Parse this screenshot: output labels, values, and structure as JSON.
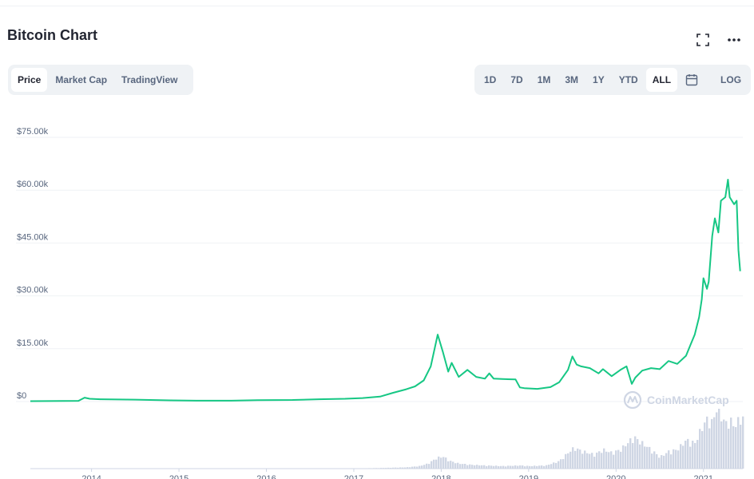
{
  "header": {
    "title": "Bitcoin Chart",
    "fullscreen_icon": "fullscreen-icon",
    "more_icon": "more-horizontal-icon"
  },
  "view_tabs": [
    {
      "label": "Price",
      "active": true
    },
    {
      "label": "Market Cap",
      "active": false
    },
    {
      "label": "TradingView",
      "active": false
    }
  ],
  "range_tabs": [
    {
      "label": "1D",
      "active": false
    },
    {
      "label": "7D",
      "active": false
    },
    {
      "label": "1M",
      "active": false
    },
    {
      "label": "3M",
      "active": false
    },
    {
      "label": "1Y",
      "active": false
    },
    {
      "label": "YTD",
      "active": false
    },
    {
      "label": "ALL",
      "active": true
    }
  ],
  "calendar_icon": "calendar-icon",
  "scale_toggle": {
    "label": "LOG"
  },
  "colors": {
    "line": "#16c784",
    "volume": "#cfd6e4",
    "grid": "#eff2f5",
    "tick_text": "#58667e",
    "button_bg": "#eff2f5",
    "active_bg": "#ffffff"
  },
  "watermark": {
    "text": "CoinMarketCap",
    "icon": "coinmarketcap-logo-icon"
  },
  "chart_data": {
    "type": "line",
    "title": "",
    "xlabel": "",
    "ylabel": "",
    "ylim": [
      0,
      75000
    ],
    "yticks": [
      {
        "value": 0,
        "label": "$0"
      },
      {
        "value": 15000,
        "label": "$15.00k"
      },
      {
        "value": 30000,
        "label": "$30.00k"
      },
      {
        "value": 45000,
        "label": "$45.00k"
      },
      {
        "value": 60000,
        "label": "$60.00k"
      },
      {
        "value": 75000,
        "label": "$75.00k"
      }
    ],
    "xlim": [
      2013.3,
      2021.45
    ],
    "xticks": [
      {
        "value": 2014,
        "label": "2014"
      },
      {
        "value": 2015,
        "label": "2015"
      },
      {
        "value": 2016,
        "label": "2016"
      },
      {
        "value": 2017,
        "label": "2017"
      },
      {
        "value": 2018,
        "label": "2018"
      },
      {
        "value": 2019,
        "label": "2019"
      },
      {
        "value": 2020,
        "label": "2020"
      },
      {
        "value": 2021,
        "label": "2021"
      }
    ],
    "grid": true,
    "legend": "none",
    "series": [
      {
        "kind": "price",
        "points": [
          [
            2013.3,
            120
          ],
          [
            2013.85,
            200
          ],
          [
            2013.92,
            1100
          ],
          [
            2013.98,
            800
          ],
          [
            2014.1,
            650
          ],
          [
            2014.5,
            550
          ],
          [
            2014.9,
            350
          ],
          [
            2015.2,
            250
          ],
          [
            2015.6,
            250
          ],
          [
            2015.9,
            400
          ],
          [
            2016.3,
            450
          ],
          [
            2016.6,
            650
          ],
          [
            2016.9,
            800
          ],
          [
            2017.1,
            1000
          ],
          [
            2017.3,
            1400
          ],
          [
            2017.45,
            2500
          ],
          [
            2017.6,
            3500
          ],
          [
            2017.7,
            4300
          ],
          [
            2017.8,
            6000
          ],
          [
            2017.88,
            10000
          ],
          [
            2017.96,
            19000
          ],
          [
            2018.02,
            14000
          ],
          [
            2018.08,
            8500
          ],
          [
            2018.12,
            11000
          ],
          [
            2018.2,
            7000
          ],
          [
            2018.3,
            9000
          ],
          [
            2018.4,
            7000
          ],
          [
            2018.5,
            6500
          ],
          [
            2018.55,
            8000
          ],
          [
            2018.6,
            6500
          ],
          [
            2018.7,
            6400
          ],
          [
            2018.85,
            6300
          ],
          [
            2018.9,
            4000
          ],
          [
            2018.95,
            3800
          ],
          [
            2019.1,
            3600
          ],
          [
            2019.25,
            4100
          ],
          [
            2019.35,
            5500
          ],
          [
            2019.45,
            9000
          ],
          [
            2019.5,
            12800
          ],
          [
            2019.55,
            10500
          ],
          [
            2019.6,
            10000
          ],
          [
            2019.7,
            9500
          ],
          [
            2019.8,
            8000
          ],
          [
            2019.85,
            9200
          ],
          [
            2019.95,
            7200
          ],
          [
            2020.05,
            9000
          ],
          [
            2020.12,
            10000
          ],
          [
            2020.18,
            5000
          ],
          [
            2020.22,
            6800
          ],
          [
            2020.3,
            8800
          ],
          [
            2020.4,
            9500
          ],
          [
            2020.5,
            9200
          ],
          [
            2020.6,
            11500
          ],
          [
            2020.7,
            10700
          ],
          [
            2020.8,
            13000
          ],
          [
            2020.85,
            16000
          ],
          [
            2020.9,
            19000
          ],
          [
            2020.95,
            24000
          ],
          [
            2020.98,
            29000
          ],
          [
            2021.0,
            35000
          ],
          [
            2021.04,
            32000
          ],
          [
            2021.06,
            34000
          ],
          [
            2021.1,
            47000
          ],
          [
            2021.13,
            52000
          ],
          [
            2021.17,
            48000
          ],
          [
            2021.2,
            57000
          ],
          [
            2021.25,
            58000
          ],
          [
            2021.28,
            63000
          ],
          [
            2021.3,
            58000
          ],
          [
            2021.35,
            56000
          ],
          [
            2021.38,
            57000
          ],
          [
            2021.4,
            43000
          ],
          [
            2021.42,
            37000
          ]
        ]
      },
      {
        "kind": "volume",
        "points": [
          [
            2013.3,
            0.0
          ],
          [
            2016.9,
            0.0
          ],
          [
            2017.3,
            0.01
          ],
          [
            2017.6,
            0.02
          ],
          [
            2017.75,
            0.04
          ],
          [
            2017.85,
            0.08
          ],
          [
            2017.95,
            0.17
          ],
          [
            2018.02,
            0.19
          ],
          [
            2018.1,
            0.12
          ],
          [
            2018.2,
            0.08
          ],
          [
            2018.35,
            0.06
          ],
          [
            2018.5,
            0.05
          ],
          [
            2018.7,
            0.04
          ],
          [
            2018.9,
            0.05
          ],
          [
            2019.0,
            0.04
          ],
          [
            2019.2,
            0.05
          ],
          [
            2019.35,
            0.12
          ],
          [
            2019.45,
            0.25
          ],
          [
            2019.52,
            0.33
          ],
          [
            2019.6,
            0.28
          ],
          [
            2019.75,
            0.22
          ],
          [
            2019.85,
            0.3
          ],
          [
            2019.95,
            0.25
          ],
          [
            2020.05,
            0.3
          ],
          [
            2020.15,
            0.43
          ],
          [
            2020.2,
            0.5
          ],
          [
            2020.3,
            0.4
          ],
          [
            2020.4,
            0.3
          ],
          [
            2020.5,
            0.18
          ],
          [
            2020.6,
            0.27
          ],
          [
            2020.7,
            0.3
          ],
          [
            2020.8,
            0.45
          ],
          [
            2020.9,
            0.4
          ],
          [
            2020.98,
            0.65
          ],
          [
            2021.05,
            0.8
          ],
          [
            2021.1,
            0.72
          ],
          [
            2021.15,
            0.96
          ],
          [
            2021.2,
            0.85
          ],
          [
            2021.25,
            0.7
          ],
          [
            2021.3,
            0.78
          ],
          [
            2021.35,
            0.66
          ],
          [
            2021.4,
            0.76
          ],
          [
            2021.43,
            0.8
          ]
        ]
      }
    ]
  }
}
